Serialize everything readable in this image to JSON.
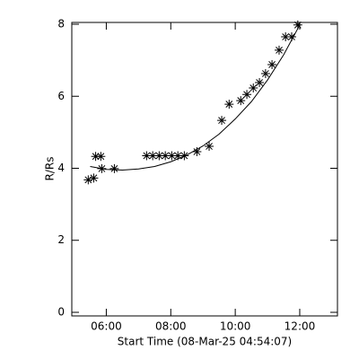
{
  "chart_data": {
    "type": "scatter",
    "xlabel": "Start Time (08-Mar-25 04:54:07)",
    "ylabel": "R/Rs",
    "xlim": [
      4.93,
      13.17
    ],
    "ylim": [
      -0.1,
      8.05
    ],
    "xticks": [
      {
        "value": 6,
        "label": "06:00"
      },
      {
        "value": 8,
        "label": "08:00"
      },
      {
        "value": 10,
        "label": "10:00"
      },
      {
        "value": 12,
        "label": "12:00"
      }
    ],
    "yticks": [
      0,
      2,
      4,
      6,
      8
    ],
    "series": [
      {
        "marker": "asterisk",
        "color": "#000000",
        "x": [
          5.44,
          5.61,
          5.67,
          5.83,
          5.86,
          6.25,
          7.25,
          7.44,
          7.64,
          7.83,
          8.03,
          8.22,
          8.42,
          8.81,
          9.19,
          9.58,
          9.81,
          10.17,
          10.36,
          10.56,
          10.75,
          10.94,
          11.14,
          11.36,
          11.56,
          11.75,
          11.94
        ],
        "values": [
          3.68,
          3.73,
          4.33,
          4.33,
          3.99,
          3.99,
          4.35,
          4.35,
          4.35,
          4.35,
          4.35,
          4.35,
          4.35,
          4.46,
          4.61,
          5.33,
          5.78,
          5.88,
          6.05,
          6.23,
          6.38,
          6.63,
          6.88,
          7.28,
          7.65,
          7.65,
          7.98
        ]
      },
      {
        "marker": "line",
        "color": "#000000",
        "x": [
          5.5,
          6.0,
          6.5,
          7.0,
          7.5,
          8.0,
          8.5,
          9.0,
          9.5,
          10.0,
          10.5,
          11.0,
          11.5,
          12.0
        ],
        "values": [
          4.05,
          3.97,
          3.95,
          3.98,
          4.05,
          4.18,
          4.37,
          4.62,
          4.95,
          5.37,
          5.85,
          6.45,
          7.15,
          7.98
        ]
      }
    ]
  }
}
